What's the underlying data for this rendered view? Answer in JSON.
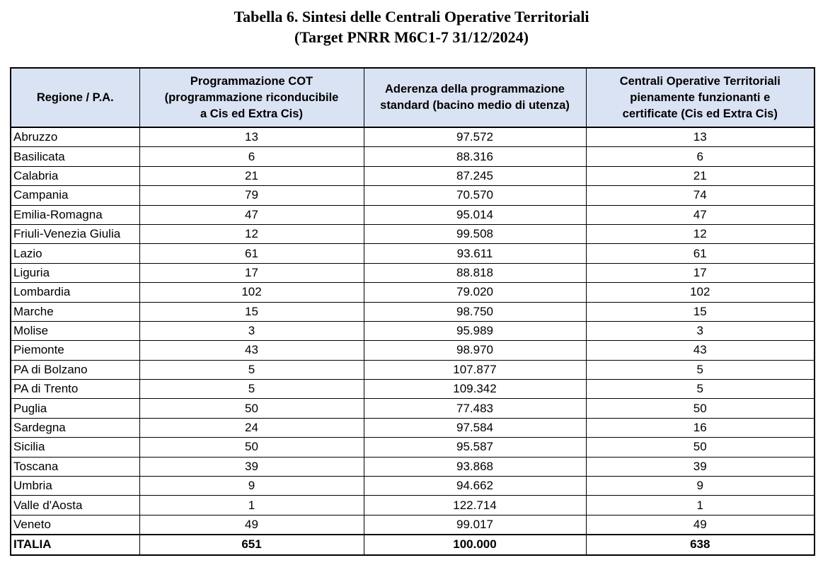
{
  "page": {
    "title_line1": "Tabella 6. Sintesi delle Centrali Operative Territoriali",
    "title_line2": "(Target PNRR M6C1-7 31/12/2024)"
  },
  "table": {
    "columns": [
      "Regione / P.A.",
      "Programmazione COT\n(programmazione riconducibile\na Cis ed Extra Cis)",
      "Aderenza della programmazione\nstandard (bacino medio di utenza)",
      "Centrali Operative Territoriali\npienamente funzionanti e\ncertificate (Cis ed Extra Cis)"
    ],
    "rows": [
      {
        "region": "Abruzzo",
        "cot": "13",
        "aderenza": "97.572",
        "certified": "13"
      },
      {
        "region": "Basilicata",
        "cot": "6",
        "aderenza": "88.316",
        "certified": "6"
      },
      {
        "region": "Calabria",
        "cot": "21",
        "aderenza": "87.245",
        "certified": "21"
      },
      {
        "region": "Campania",
        "cot": "79",
        "aderenza": "70.570",
        "certified": "74"
      },
      {
        "region": "Emilia-Romagna",
        "cot": "47",
        "aderenza": "95.014",
        "certified": "47"
      },
      {
        "region": "Friuli-Venezia Giulia",
        "cot": "12",
        "aderenza": "99.508",
        "certified": "12"
      },
      {
        "region": "Lazio",
        "cot": "61",
        "aderenza": "93.611",
        "certified": "61"
      },
      {
        "region": "Liguria",
        "cot": "17",
        "aderenza": "88.818",
        "certified": "17"
      },
      {
        "region": "Lombardia",
        "cot": "102",
        "aderenza": "79.020",
        "certified": "102"
      },
      {
        "region": "Marche",
        "cot": "15",
        "aderenza": "98.750",
        "certified": "15"
      },
      {
        "region": "Molise",
        "cot": "3",
        "aderenza": "95.989",
        "certified": "3"
      },
      {
        "region": "Piemonte",
        "cot": "43",
        "aderenza": "98.970",
        "certified": "43"
      },
      {
        "region": "PA di Bolzano",
        "cot": "5",
        "aderenza": "107.877",
        "certified": "5"
      },
      {
        "region": "PA di Trento",
        "cot": "5",
        "aderenza": "109.342",
        "certified": "5"
      },
      {
        "region": "Puglia",
        "cot": "50",
        "aderenza": "77.483",
        "certified": "50"
      },
      {
        "region": "Sardegna",
        "cot": "24",
        "aderenza": "97.584",
        "certified": "16"
      },
      {
        "region": "Sicilia",
        "cot": "50",
        "aderenza": "95.587",
        "certified": "50"
      },
      {
        "region": "Toscana",
        "cot": "39",
        "aderenza": "93.868",
        "certified": "39"
      },
      {
        "region": "Umbria",
        "cot": "9",
        "aderenza": "94.662",
        "certified": "9"
      },
      {
        "region": "Valle d'Aosta",
        "cot": "1",
        "aderenza": "122.714",
        "certified": "1"
      },
      {
        "region": "Veneto",
        "cot": "49",
        "aderenza": "99.017",
        "certified": "49"
      }
    ],
    "total": {
      "region": "ITALIA",
      "cot": "651",
      "aderenza": "100.000",
      "certified": "638"
    }
  },
  "colors": {
    "header_bg": "#dae3f3",
    "border": "#000000",
    "text": "#000000"
  }
}
